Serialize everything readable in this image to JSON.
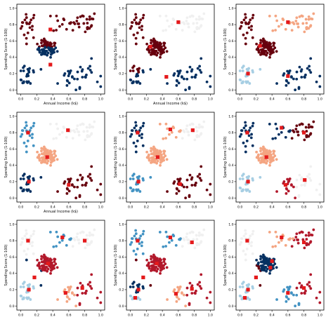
{
  "palette": {
    "dark_red": "#67000d",
    "red": "#b2182b",
    "salmon": "#f4a582",
    "light_grey": "#f0f0f0",
    "light_blue": "#a6cee3",
    "mid_blue": "#4393c3",
    "dark_blue": "#053061",
    "centroid": "#e41a1c"
  },
  "chart_data": [
    {
      "type": "scatter",
      "xlabel": "Annual Income (k$)",
      "ylabel": "Spending Score (1-100)",
      "xlim": [
        -0.05,
        1.05
      ],
      "ylim": [
        -0.05,
        1.05
      ],
      "xticks": [
        "0.0",
        "0.2",
        "0.4",
        "0.6",
        "0.8",
        "1.0"
      ],
      "yticks": [
        "0.0",
        "0.2",
        "0.4",
        "0.6",
        "0.8",
        "1.0"
      ],
      "k": 2,
      "cluster_colors": [
        "dark_red",
        "dark_blue"
      ],
      "centroids": [
        {
          "x": 0.37,
          "y": 0.74
        },
        {
          "x": 0.37,
          "y": 0.31
        }
      ]
    },
    {
      "type": "scatter",
      "xlabel": "Annual Income (k$)",
      "ylabel": "Spending Score (1-100)",
      "xlim": [
        -0.05,
        1.05
      ],
      "ylim": [
        -0.05,
        1.05
      ],
      "xticks": [
        "0.0",
        "0.2",
        "0.4",
        "0.6",
        "0.8",
        "1.0"
      ],
      "yticks": [
        "0.0",
        "0.2",
        "0.4",
        "0.6",
        "0.8",
        "1.0"
      ],
      "k": 3,
      "cluster_colors": [
        "dark_red",
        "light_grey",
        "dark_blue"
      ],
      "centroids": [
        {
          "x": 0.25,
          "y": 0.53
        },
        {
          "x": 0.6,
          "y": 0.83
        },
        {
          "x": 0.45,
          "y": 0.16
        }
      ]
    },
    {
      "type": "scatter",
      "xlabel": "",
      "ylabel": "Spending Score (1-100)",
      "xlim": [
        -0.05,
        1.05
      ],
      "ylim": [
        -0.05,
        1.05
      ],
      "xticks": [
        "0.0",
        "0.2",
        "0.4",
        "0.6",
        "0.8",
        "1.0"
      ],
      "yticks": [
        "0.0",
        "0.2",
        "0.4",
        "0.6",
        "0.8",
        "1.0"
      ],
      "k": 4,
      "cluster_colors": [
        "dark_red",
        "salmon",
        "light_blue",
        "dark_blue"
      ],
      "centroids": [
        {
          "x": 0.25,
          "y": 0.54
        },
        {
          "x": 0.6,
          "y": 0.83
        },
        {
          "x": 0.1,
          "y": 0.2
        },
        {
          "x": 0.6,
          "y": 0.17
        }
      ]
    },
    {
      "type": "scatter",
      "xlabel": "Annual Income (k$)",
      "ylabel": "Spending Score (1-100)",
      "xlim": [
        -0.05,
        1.05
      ],
      "ylim": [
        -0.05,
        1.05
      ],
      "xticks": [
        "0.0",
        "0.2",
        "0.4",
        "0.6",
        "0.8",
        "1.0"
      ],
      "yticks": [
        "0.0",
        "0.2",
        "0.4",
        "0.6",
        "0.8",
        "1.0"
      ],
      "k": 5,
      "cluster_colors": [
        "mid_blue",
        "salmon",
        "light_grey",
        "dark_blue",
        "dark_red"
      ],
      "centroids": [
        {
          "x": 0.09,
          "y": 0.8
        },
        {
          "x": 0.33,
          "y": 0.5
        },
        {
          "x": 0.59,
          "y": 0.83
        },
        {
          "x": 0.1,
          "y": 0.2
        },
        {
          "x": 0.6,
          "y": 0.16
        }
      ]
    },
    {
      "type": "scatter",
      "xlabel": "",
      "ylabel": "Spending Score (1-100)",
      "xlim": [
        -0.05,
        1.05
      ],
      "ylim": [
        -0.05,
        1.05
      ],
      "xticks": [
        "0.0",
        "0.2",
        "0.4",
        "0.6",
        "0.8",
        "1.0"
      ],
      "yticks": [
        "0.0",
        "0.2",
        "0.4",
        "0.6",
        "0.8",
        "1.0"
      ],
      "k": 6,
      "cluster_colors": [
        "dark_blue",
        "salmon",
        "light_grey",
        "mid_blue",
        "dark_red",
        "salmon"
      ],
      "centroids": [
        {
          "x": 0.09,
          "y": 0.8
        },
        {
          "x": 0.34,
          "y": 0.5
        },
        {
          "x": 0.78,
          "y": 0.83
        },
        {
          "x": 0.1,
          "y": 0.2
        },
        {
          "x": 0.62,
          "y": 0.17
        },
        {
          "x": 0.5,
          "y": 0.84
        }
      ]
    },
    {
      "type": "scatter",
      "xlabel": "",
      "ylabel": "Spending Score (1-100)",
      "xlim": [
        -0.05,
        1.05
      ],
      "ylim": [
        -0.05,
        1.05
      ],
      "xticks": [
        "0.0",
        "0.2",
        "0.4",
        "0.6",
        "0.8",
        "1.0"
      ],
      "yticks": [
        "0.0",
        "0.2",
        "0.4",
        "0.6",
        "0.8",
        "1.0"
      ],
      "k": 7,
      "cluster_colors": [
        "dark_blue",
        "salmon",
        "dark_red",
        "light_blue",
        "red",
        "dark_blue",
        "light_grey"
      ],
      "centroids": [
        {
          "x": 0.09,
          "y": 0.8
        },
        {
          "x": 0.33,
          "y": 0.5
        },
        {
          "x": 0.8,
          "y": 0.8
        },
        {
          "x": 0.1,
          "y": 0.2
        },
        {
          "x": 0.57,
          "y": 0.16
        },
        {
          "x": 0.52,
          "y": 0.86
        },
        {
          "x": 0.81,
          "y": 0.22
        }
      ]
    },
    {
      "type": "scatter",
      "xlabel": "",
      "ylabel": "Spending Score (1-100)",
      "xlim": [
        -0.05,
        1.05
      ],
      "ylim": [
        -0.05,
        1.05
      ],
      "xticks": [
        "0.0",
        "0.2",
        "0.4",
        "0.6",
        "0.8",
        "1.0"
      ],
      "yticks": [
        "0.0",
        "0.2",
        "0.4",
        "0.6",
        "0.8",
        "1.0"
      ],
      "k": 8,
      "cluster_colors": [
        "light_grey",
        "red",
        "light_grey",
        "light_blue",
        "salmon",
        "mid_blue",
        "dark_blue",
        "red"
      ],
      "centroids": [
        {
          "x": 0.09,
          "y": 0.8
        },
        {
          "x": 0.34,
          "y": 0.52
        },
        {
          "x": 0.8,
          "y": 0.8
        },
        {
          "x": 0.1,
          "y": 0.2
        },
        {
          "x": 0.56,
          "y": 0.16
        },
        {
          "x": 0.52,
          "y": 0.84
        },
        {
          "x": 0.17,
          "y": 0.35
        },
        {
          "x": 0.77,
          "y": 0.22
        }
      ]
    },
    {
      "type": "scatter",
      "xlabel": "",
      "ylabel": "Spending Score (1-100)",
      "xlim": [
        -0.05,
        1.05
      ],
      "ylim": [
        -0.05,
        1.05
      ],
      "xticks": [
        "0.0",
        "0.2",
        "0.4",
        "0.6",
        "0.8",
        "1.0"
      ],
      "yticks": [
        "0.0",
        "0.2",
        "0.4",
        "0.6",
        "0.8",
        "1.0"
      ],
      "k": 9,
      "cluster_colors": [
        "mid_blue",
        "red",
        "light_grey",
        "dark_blue",
        "salmon",
        "mid_blue",
        "dark_red",
        "red",
        "light_blue"
      ],
      "centroids": [
        {
          "x": 0.09,
          "y": 0.8
        },
        {
          "x": 0.33,
          "y": 0.52
        },
        {
          "x": 0.77,
          "y": 0.78
        },
        {
          "x": 0.1,
          "y": 0.2
        },
        {
          "x": 0.57,
          "y": 0.15
        },
        {
          "x": 0.5,
          "y": 0.84
        },
        {
          "x": 0.16,
          "y": 0.35
        },
        {
          "x": 0.77,
          "y": 0.21
        },
        {
          "x": 0.06,
          "y": 0.1
        }
      ]
    },
    {
      "type": "scatter",
      "xlabel": "",
      "ylabel": "Spending Score (1-100)",
      "xlim": [
        -0.05,
        1.05
      ],
      "ylim": [
        -0.05,
        1.05
      ],
      "xticks": [
        "0.0",
        "0.2",
        "0.4",
        "0.6",
        "0.8",
        "1.0"
      ],
      "yticks": [
        "0.0",
        "0.2",
        "0.4",
        "0.6",
        "0.8",
        "1.0"
      ],
      "k": 10,
      "cluster_colors": [
        "light_grey",
        "dark_blue",
        "red",
        "light_blue",
        "mid_blue",
        "salmon",
        "dark_red",
        "red",
        "light_blue",
        "dark_blue"
      ],
      "centroids": [
        {
          "x": 0.09,
          "y": 0.8
        },
        {
          "x": 0.38,
          "y": 0.47
        },
        {
          "x": 0.8,
          "y": 0.78
        },
        {
          "x": 0.1,
          "y": 0.2
        },
        {
          "x": 0.6,
          "y": 0.16
        },
        {
          "x": 0.52,
          "y": 0.84
        },
        {
          "x": 0.2,
          "y": 0.35
        },
        {
          "x": 0.8,
          "y": 0.22
        },
        {
          "x": 0.06,
          "y": 0.1
        },
        {
          "x": 0.4,
          "y": 0.55
        }
      ]
    }
  ]
}
